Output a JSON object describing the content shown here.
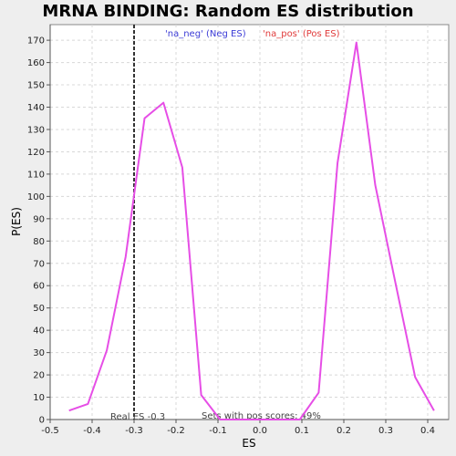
{
  "chart_data": {
    "type": "line",
    "title": "MRNA BINDING: Random ES distribution",
    "xlabel": "ES",
    "ylabel": "P(ES)",
    "xlim": [
      -0.5,
      0.45
    ],
    "ylim": [
      0,
      177
    ],
    "xticks": [
      -0.5,
      -0.4,
      -0.3,
      -0.2,
      -0.1,
      0.0,
      0.1,
      0.2,
      0.3,
      0.4
    ],
    "xtick_labels": [
      "-0.5",
      "-0.4",
      "-0.3",
      "-0.2",
      "-0.1",
      "0.0",
      "0.1",
      "0.2",
      "0.3",
      "0.4"
    ],
    "yticks": [
      0,
      10,
      20,
      30,
      40,
      50,
      60,
      70,
      80,
      90,
      100,
      110,
      120,
      130,
      140,
      150,
      160,
      170
    ],
    "ytick_labels": [
      "0",
      "10",
      "20",
      "30",
      "40",
      "50",
      "60",
      "70",
      "80",
      "90",
      "100",
      "110",
      "120",
      "130",
      "140",
      "150",
      "160",
      "170"
    ],
    "grid": true,
    "legend": [
      {
        "label": "'na_neg' (Neg ES)",
        "color": "#3b3bd6"
      },
      {
        "label": "'na_pos' (Pos ES)",
        "color": "#e03a3a"
      }
    ],
    "series": [
      {
        "name": "Random ES distribution",
        "color": "#e64ee6",
        "x": [
          -0.455,
          -0.41,
          -0.365,
          -0.32,
          -0.275,
          -0.23,
          -0.185,
          -0.14,
          -0.095,
          -0.05,
          0.0,
          0.05,
          0.095,
          0.14,
          0.185,
          0.23,
          0.275,
          0.32,
          0.37,
          0.415
        ],
        "y": [
          4,
          7,
          31,
          73,
          135,
          142,
          113,
          11,
          0,
          0,
          0,
          0,
          0,
          12,
          115,
          169,
          105,
          64,
          19,
          4
        ]
      }
    ],
    "reference_line": {
      "x": -0.3,
      "label": "Real ES -0.3",
      "color": "#333333"
    },
    "annotation": "Sets with pos scores: 49%"
  },
  "colors": {
    "background": "#eeeeee",
    "plot_background": "#ffffff",
    "line": "#e64ee6"
  }
}
